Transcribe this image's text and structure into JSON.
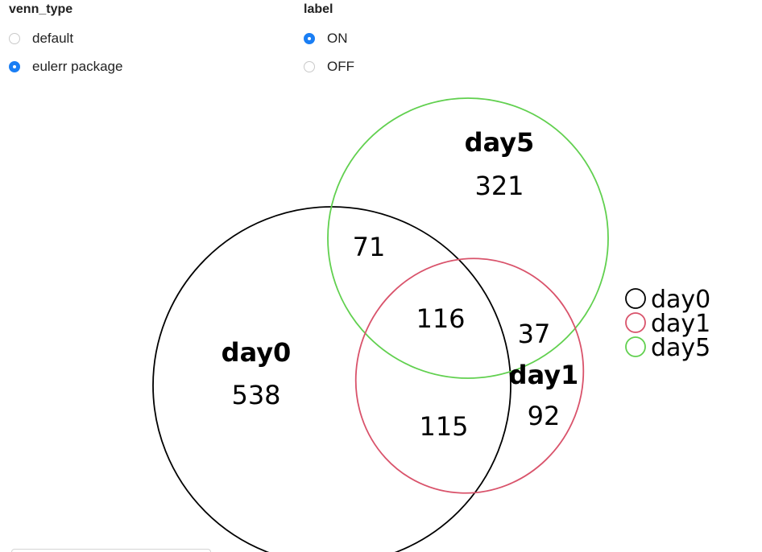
{
  "controls": {
    "venn_type": {
      "title": "venn_type",
      "options": [
        {
          "label": "default",
          "selected": false
        },
        {
          "label": "eulerr package",
          "selected": true
        }
      ]
    },
    "label": {
      "title": "label",
      "options": [
        {
          "label": "ON",
          "selected": true
        },
        {
          "label": "OFF",
          "selected": false
        }
      ]
    }
  },
  "colors": {
    "day0": "#000000",
    "day1": "#d9536b",
    "day5": "#61d04f"
  },
  "chart_data": {
    "type": "venn",
    "sets": [
      {
        "name": "day0",
        "color": "#000000"
      },
      {
        "name": "day1",
        "color": "#d9536b"
      },
      {
        "name": "day5",
        "color": "#61d04f"
      }
    ],
    "regions": [
      {
        "sets": [
          "day0"
        ],
        "value": 538
      },
      {
        "sets": [
          "day1"
        ],
        "value": 92
      },
      {
        "sets": [
          "day5"
        ],
        "value": 321
      },
      {
        "sets": [
          "day0",
          "day5"
        ],
        "value": 71
      },
      {
        "sets": [
          "day0",
          "day1"
        ],
        "value": 115
      },
      {
        "sets": [
          "day1",
          "day5"
        ],
        "value": 37
      },
      {
        "sets": [
          "day0",
          "day1",
          "day5"
        ],
        "value": 116
      }
    ],
    "legend": {
      "position": "right",
      "entries": [
        "day0",
        "day1",
        "day5"
      ]
    }
  }
}
